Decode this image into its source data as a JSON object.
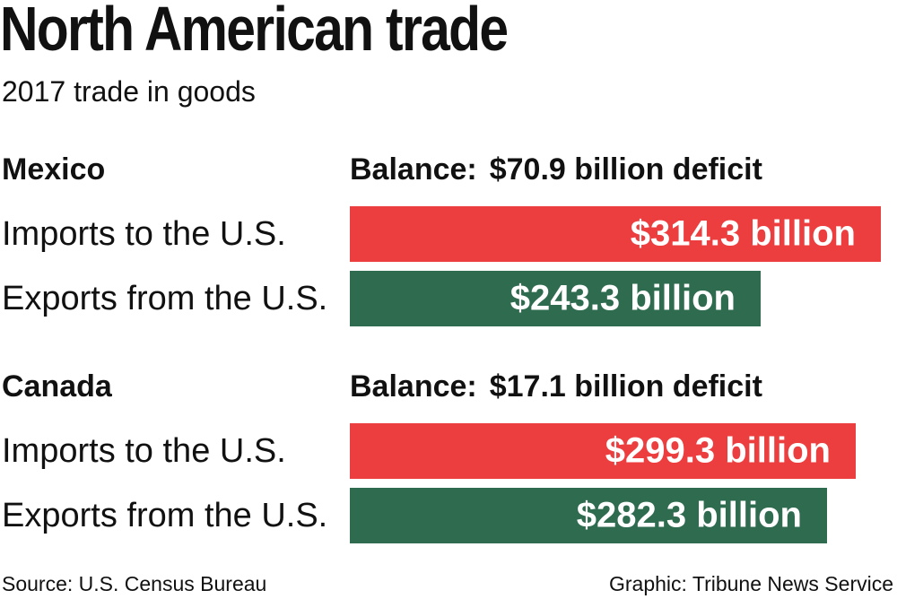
{
  "colors": {
    "imports": "#ec3e3f",
    "exports": "#2f6b4f"
  },
  "chart_data": {
    "type": "bar",
    "title": "North American trade",
    "subtitle": "2017 trade in goods",
    "categories": [
      "Imports to the U.S.",
      "Exports from the U.S."
    ],
    "groups": [
      {
        "name": "Mexico",
        "balance_label": "Balance:",
        "balance_value": "$70.9 billion deficit",
        "values": [
          314.3,
          243.3
        ],
        "value_labels": [
          "$314.3 billion",
          "$243.3 billion"
        ]
      },
      {
        "name": "Canada",
        "balance_label": "Balance:",
        "balance_value": "$17.1 billion deficit",
        "values": [
          299.3,
          282.3
        ],
        "value_labels": [
          "$299.3 billion",
          "$282.3 billion"
        ]
      }
    ],
    "unit": "billion",
    "xlim": [
      0,
      314.3
    ],
    "grid": false,
    "legend": "none"
  },
  "footer": {
    "source": "Source: U.S. Census Bureau",
    "credit": "Graphic: Tribune News Service"
  }
}
